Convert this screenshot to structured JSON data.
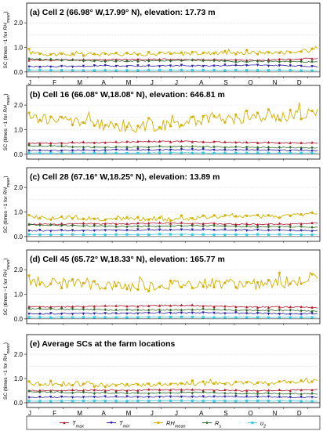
{
  "figure": {
    "ylabel_prefix": "SC (times −1 for ",
    "ylabel_var": "RH",
    "ylabel_sub": "mean",
    "ylabel_suffix": ")"
  },
  "legend": [
    {
      "name": "T",
      "sub": "max",
      "color": "#b2182b",
      "marker": "triangle-up"
    },
    {
      "name": "T",
      "sub": "min",
      "color": "#2c1fa6",
      "marker": "triangle-down"
    },
    {
      "name": "RH",
      "sub": "mean",
      "color": "#d4b000",
      "marker": "circle"
    },
    {
      "name": "R",
      "sub": "s",
      "color": "#2e6b2e",
      "marker": "diamond"
    },
    {
      "name": "u",
      "sub": "2",
      "color": "#3ec9e0",
      "marker": "square"
    }
  ],
  "chart_data": [
    {
      "type": "line",
      "title": "(a) Cell 2 (66.98° W,17.99° N), elevation: 17.73 m",
      "x_ticks": [
        "J",
        "F",
        "M",
        "A",
        "M",
        "J",
        "J",
        "A",
        "S",
        "O",
        "N",
        "D"
      ],
      "ylim": [
        -0.1,
        2.1
      ],
      "y_ticks": [
        0.0,
        1.0,
        2.0
      ],
      "grid": true,
      "series": [
        {
          "name": "RH_mean",
          "values": [
            0.78,
            0.72,
            0.7,
            0.72,
            0.74,
            0.73,
            0.74,
            0.78,
            0.78,
            0.8,
            0.8,
            0.9
          ]
        },
        {
          "name": "T_max",
          "values": [
            0.48,
            0.48,
            0.5,
            0.5,
            0.5,
            0.52,
            0.5,
            0.5,
            0.48,
            0.48,
            0.52,
            0.56
          ]
        },
        {
          "name": "R_s",
          "values": [
            0.52,
            0.5,
            0.47,
            0.44,
            0.44,
            0.45,
            0.48,
            0.46,
            0.42,
            0.44,
            0.42,
            0.4
          ]
        },
        {
          "name": "T_min",
          "values": [
            0.22,
            0.23,
            0.23,
            0.25,
            0.25,
            0.25,
            0.26,
            0.26,
            0.27,
            0.27,
            0.26,
            0.22
          ]
        },
        {
          "name": "u_2",
          "values": [
            0.08,
            0.08,
            0.07,
            0.07,
            0.07,
            0.08,
            0.08,
            0.07,
            0.07,
            0.08,
            0.07,
            0.06
          ]
        }
      ]
    },
    {
      "type": "line",
      "title": "(b) Cell 16 (66.08° W,18.08° N), elevation: 646.81 m",
      "x_ticks": [
        "J",
        "F",
        "M",
        "A",
        "M",
        "J",
        "J",
        "A",
        "S",
        "O",
        "N",
        "D"
      ],
      "ylim": [
        -0.1,
        2.1
      ],
      "y_ticks": [
        0.0,
        1.0,
        2.0
      ],
      "grid": true,
      "series": [
        {
          "name": "RH_mean",
          "values": [
            1.5,
            1.4,
            1.35,
            1.15,
            1.1,
            1.15,
            1.3,
            1.5,
            1.45,
            1.5,
            1.55,
            1.8
          ]
        },
        {
          "name": "T_max",
          "values": [
            0.45,
            0.45,
            0.48,
            0.48,
            0.5,
            0.52,
            0.52,
            0.5,
            0.48,
            0.48,
            0.46,
            0.45
          ]
        },
        {
          "name": "R_s",
          "values": [
            0.35,
            0.33,
            0.3,
            0.28,
            0.3,
            0.3,
            0.32,
            0.3,
            0.28,
            0.28,
            0.27,
            0.26
          ]
        },
        {
          "name": "T_min",
          "values": [
            0.15,
            0.15,
            0.16,
            0.17,
            0.18,
            0.18,
            0.18,
            0.18,
            0.18,
            0.17,
            0.16,
            0.15
          ]
        },
        {
          "name": "u_2",
          "values": [
            0.05,
            0.05,
            0.05,
            0.05,
            0.05,
            0.06,
            0.06,
            0.05,
            0.05,
            0.05,
            0.05,
            0.05
          ]
        }
      ]
    },
    {
      "type": "line",
      "title": "(c) Cell 28 (67.16° W,18.25° N), elevation: 13.89 m",
      "x_ticks": [
        "J",
        "F",
        "M",
        "A",
        "M",
        "J",
        "J",
        "A",
        "S",
        "O",
        "N",
        "D"
      ],
      "ylim": [
        -0.1,
        2.1
      ],
      "y_ticks": [
        0.0,
        1.0,
        2.0
      ],
      "grid": true,
      "series": [
        {
          "name": "RH_mean",
          "values": [
            0.8,
            0.75,
            0.72,
            0.7,
            0.72,
            0.7,
            0.72,
            0.8,
            0.82,
            0.82,
            0.85,
            0.95
          ]
        },
        {
          "name": "T_max",
          "values": [
            0.5,
            0.5,
            0.52,
            0.52,
            0.52,
            0.55,
            0.55,
            0.52,
            0.5,
            0.5,
            0.52,
            0.55
          ]
        },
        {
          "name": "R_s",
          "values": [
            0.48,
            0.46,
            0.44,
            0.42,
            0.42,
            0.42,
            0.45,
            0.44,
            0.4,
            0.4,
            0.4,
            0.38
          ]
        },
        {
          "name": "T_min",
          "values": [
            0.24,
            0.24,
            0.25,
            0.26,
            0.26,
            0.27,
            0.27,
            0.27,
            0.27,
            0.26,
            0.25,
            0.24
          ]
        },
        {
          "name": "u_2",
          "values": [
            0.08,
            0.08,
            0.08,
            0.08,
            0.08,
            0.09,
            0.09,
            0.08,
            0.08,
            0.08,
            0.08,
            0.07
          ]
        }
      ]
    },
    {
      "type": "line",
      "title": "(d) Cell 45 (65.72° W,18.33° N), elevation: 165.77 m",
      "x_ticks": [
        "J",
        "F",
        "M",
        "A",
        "M",
        "J",
        "J",
        "A",
        "S",
        "O",
        "N",
        "D"
      ],
      "ylim": [
        -0.1,
        2.1
      ],
      "y_ticks": [
        0.0,
        1.0,
        2.0
      ],
      "grid": true,
      "series": [
        {
          "name": "RH_mean",
          "values": [
            1.55,
            1.45,
            1.4,
            1.35,
            1.3,
            1.35,
            1.4,
            1.45,
            1.4,
            1.4,
            1.45,
            1.75
          ]
        },
        {
          "name": "T_max",
          "values": [
            0.5,
            0.48,
            0.5,
            0.52,
            0.52,
            0.55,
            0.55,
            0.52,
            0.5,
            0.48,
            0.48,
            0.46
          ]
        },
        {
          "name": "R_s",
          "values": [
            0.4,
            0.4,
            0.38,
            0.36,
            0.36,
            0.36,
            0.38,
            0.38,
            0.35,
            0.35,
            0.34,
            0.32
          ]
        },
        {
          "name": "T_min",
          "values": [
            0.2,
            0.2,
            0.22,
            0.22,
            0.23,
            0.24,
            0.24,
            0.24,
            0.23,
            0.22,
            0.21,
            0.2
          ]
        },
        {
          "name": "u_2",
          "values": [
            0.06,
            0.06,
            0.06,
            0.06,
            0.06,
            0.07,
            0.07,
            0.06,
            0.06,
            0.06,
            0.06,
            0.06
          ]
        }
      ]
    },
    {
      "type": "line",
      "title": "(e) Average SCs at the farm locations",
      "x_ticks": [
        "J",
        "F",
        "M",
        "A",
        "M",
        "J",
        "J",
        "A",
        "S",
        "O",
        "N",
        "D"
      ],
      "ylim": [
        -0.1,
        2.1
      ],
      "y_ticks": [
        0.0,
        1.0,
        2.0
      ],
      "grid": true,
      "series": [
        {
          "name": "RH_mean",
          "values": [
            0.8,
            0.76,
            0.74,
            0.72,
            0.74,
            0.74,
            0.76,
            0.8,
            0.8,
            0.82,
            0.85,
            0.9
          ]
        },
        {
          "name": "T_max",
          "values": [
            0.5,
            0.5,
            0.52,
            0.52,
            0.52,
            0.54,
            0.54,
            0.52,
            0.5,
            0.5,
            0.52,
            0.54
          ]
        },
        {
          "name": "R_s",
          "values": [
            0.46,
            0.44,
            0.42,
            0.4,
            0.4,
            0.4,
            0.42,
            0.42,
            0.38,
            0.38,
            0.38,
            0.36
          ]
        },
        {
          "name": "T_min",
          "values": [
            0.22,
            0.22,
            0.23,
            0.24,
            0.24,
            0.25,
            0.25,
            0.25,
            0.25,
            0.24,
            0.23,
            0.22
          ]
        },
        {
          "name": "u_2",
          "values": [
            0.07,
            0.07,
            0.07,
            0.07,
            0.07,
            0.08,
            0.08,
            0.07,
            0.07,
            0.07,
            0.07,
            0.06
          ]
        }
      ]
    }
  ]
}
